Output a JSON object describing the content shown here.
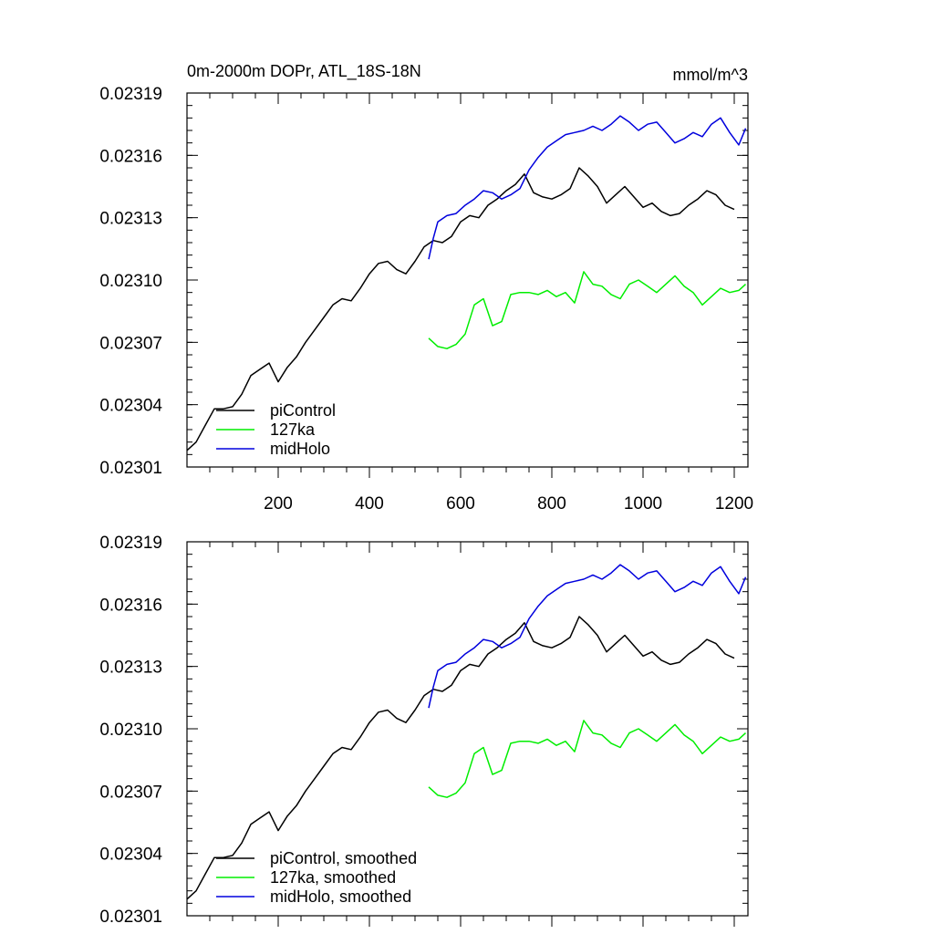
{
  "chart_data": [
    {
      "type": "line",
      "title": "0m-2000m DOPr, ATL_18S-18N",
      "units": "mmol/m^3",
      "xlim": [
        0,
        1230
      ],
      "ylim": [
        0.02301,
        0.02319
      ],
      "yticks": [
        0.02301,
        0.02304,
        0.02307,
        0.0231,
        0.02313,
        0.02316,
        0.02319
      ],
      "yticklabels": [
        "0.02301",
        "0.02304",
        "0.02307",
        "0.02310",
        "0.02313",
        "0.02316",
        "0.02319"
      ],
      "xticks": [
        200,
        400,
        600,
        800,
        1000,
        1200
      ],
      "xticklabels": [
        "200",
        "400",
        "600",
        "800",
        "1000",
        "1200"
      ],
      "series": [
        {
          "name": "piControl",
          "color": "#000000",
          "x": [
            0,
            20,
            40,
            60,
            80,
            100,
            120,
            140,
            160,
            180,
            200,
            220,
            240,
            260,
            280,
            300,
            320,
            340,
            360,
            380,
            400,
            420,
            440,
            460,
            480,
            500,
            520,
            540,
            560,
            580,
            600,
            620,
            640,
            660,
            680,
            700,
            720,
            740,
            760,
            780,
            800,
            820,
            840,
            860,
            880,
            900,
            920,
            940,
            960,
            980,
            1000,
            1020,
            1040,
            1060,
            1080,
            1100,
            1120,
            1140,
            1160,
            1180,
            1200
          ],
          "y": [
            0.023018,
            0.023022,
            0.02303,
            0.023038,
            0.023038,
            0.023039,
            0.023045,
            0.023054,
            0.023057,
            0.02306,
            0.023051,
            0.023058,
            0.023063,
            0.02307,
            0.023076,
            0.023082,
            0.023088,
            0.023091,
            0.02309,
            0.023096,
            0.023103,
            0.023108,
            0.023109,
            0.023105,
            0.023103,
            0.023109,
            0.023116,
            0.023119,
            0.023118,
            0.023121,
            0.023128,
            0.023131,
            0.02313,
            0.023136,
            0.023139,
            0.023143,
            0.023146,
            0.023151,
            0.023142,
            0.02314,
            0.023139,
            0.023141,
            0.023144,
            0.023154,
            0.02315,
            0.023145,
            0.023137,
            0.023141,
            0.023145,
            0.02314,
            0.023135,
            0.023137,
            0.023133,
            0.023131,
            0.023132,
            0.023136,
            0.023139,
            0.023143,
            0.023141,
            0.023136,
            0.023134
          ]
        },
        {
          "name": "127ka",
          "color": "#00ee00",
          "x": [
            530,
            550,
            570,
            590,
            610,
            630,
            650,
            670,
            690,
            710,
            730,
            750,
            770,
            790,
            810,
            830,
            850,
            870,
            890,
            910,
            930,
            950,
            970,
            990,
            1010,
            1030,
            1050,
            1070,
            1090,
            1110,
            1130,
            1150,
            1170,
            1190,
            1210,
            1225
          ],
          "y": [
            0.023072,
            0.023068,
            0.023067,
            0.023069,
            0.023074,
            0.023088,
            0.023091,
            0.023078,
            0.02308,
            0.023093,
            0.023094,
            0.023094,
            0.023093,
            0.023095,
            0.023092,
            0.023094,
            0.023089,
            0.023104,
            0.023098,
            0.023097,
            0.023093,
            0.023091,
            0.023098,
            0.0231,
            0.023097,
            0.023094,
            0.023098,
            0.023102,
            0.023097,
            0.023094,
            0.023088,
            0.023092,
            0.023096,
            0.023094,
            0.023095,
            0.023098
          ]
        },
        {
          "name": "midHolo",
          "color": "#0000dd",
          "x": [
            530,
            540,
            550,
            570,
            590,
            610,
            630,
            650,
            670,
            690,
            710,
            730,
            750,
            770,
            790,
            810,
            830,
            850,
            870,
            890,
            910,
            930,
            950,
            970,
            990,
            1010,
            1030,
            1050,
            1070,
            1090,
            1110,
            1130,
            1150,
            1170,
            1190,
            1210,
            1225
          ],
          "y": [
            0.02311,
            0.02312,
            0.023128,
            0.023131,
            0.023132,
            0.023136,
            0.023139,
            0.023143,
            0.023142,
            0.023139,
            0.023141,
            0.023144,
            0.023153,
            0.023159,
            0.023164,
            0.023167,
            0.02317,
            0.023171,
            0.023172,
            0.023174,
            0.023172,
            0.023175,
            0.023179,
            0.023176,
            0.023172,
            0.023175,
            0.023176,
            0.023171,
            0.023166,
            0.023168,
            0.023171,
            0.023169,
            0.023175,
            0.023178,
            0.023171,
            0.023165,
            0.023173
          ]
        }
      ],
      "legend": [
        "piControl",
        "127ka",
        "midHolo"
      ]
    },
    {
      "type": "line",
      "title": "",
      "xlim": [
        0,
        1230
      ],
      "ylim": [
        0.02301,
        0.02319
      ],
      "yticks": [
        0.02301,
        0.02304,
        0.02307,
        0.0231,
        0.02313,
        0.02316,
        0.02319
      ],
      "yticklabels": [
        "0.02301",
        "0.02304",
        "0.02307",
        "0.02310",
        "0.02313",
        "0.02316",
        "0.02319"
      ],
      "xticks": [
        200,
        400,
        600,
        800,
        1000,
        1200
      ],
      "xticklabels": [],
      "series": [
        {
          "name": "piControl, smoothed",
          "color": "#000000",
          "x": [
            0,
            20,
            40,
            60,
            80,
            100,
            120,
            140,
            160,
            180,
            200,
            220,
            240,
            260,
            280,
            300,
            320,
            340,
            360,
            380,
            400,
            420,
            440,
            460,
            480,
            500,
            520,
            540,
            560,
            580,
            600,
            620,
            640,
            660,
            680,
            700,
            720,
            740,
            760,
            780,
            800,
            820,
            840,
            860,
            880,
            900,
            920,
            940,
            960,
            980,
            1000,
            1020,
            1040,
            1060,
            1080,
            1100,
            1120,
            1140,
            1160,
            1180,
            1200
          ],
          "y": [
            0.023018,
            0.023022,
            0.02303,
            0.023038,
            0.023038,
            0.023039,
            0.023045,
            0.023054,
            0.023057,
            0.02306,
            0.023051,
            0.023058,
            0.023063,
            0.02307,
            0.023076,
            0.023082,
            0.023088,
            0.023091,
            0.02309,
            0.023096,
            0.023103,
            0.023108,
            0.023109,
            0.023105,
            0.023103,
            0.023109,
            0.023116,
            0.023119,
            0.023118,
            0.023121,
            0.023128,
            0.023131,
            0.02313,
            0.023136,
            0.023139,
            0.023143,
            0.023146,
            0.023151,
            0.023142,
            0.02314,
            0.023139,
            0.023141,
            0.023144,
            0.023154,
            0.02315,
            0.023145,
            0.023137,
            0.023141,
            0.023145,
            0.02314,
            0.023135,
            0.023137,
            0.023133,
            0.023131,
            0.023132,
            0.023136,
            0.023139,
            0.023143,
            0.023141,
            0.023136,
            0.023134
          ]
        },
        {
          "name": "127ka, smoothed",
          "color": "#00ee00",
          "x": [
            530,
            550,
            570,
            590,
            610,
            630,
            650,
            670,
            690,
            710,
            730,
            750,
            770,
            790,
            810,
            830,
            850,
            870,
            890,
            910,
            930,
            950,
            970,
            990,
            1010,
            1030,
            1050,
            1070,
            1090,
            1110,
            1130,
            1150,
            1170,
            1190,
            1210,
            1225
          ],
          "y": [
            0.023072,
            0.023068,
            0.023067,
            0.023069,
            0.023074,
            0.023088,
            0.023091,
            0.023078,
            0.02308,
            0.023093,
            0.023094,
            0.023094,
            0.023093,
            0.023095,
            0.023092,
            0.023094,
            0.023089,
            0.023104,
            0.023098,
            0.023097,
            0.023093,
            0.023091,
            0.023098,
            0.0231,
            0.023097,
            0.023094,
            0.023098,
            0.023102,
            0.023097,
            0.023094,
            0.023088,
            0.023092,
            0.023096,
            0.023094,
            0.023095,
            0.023098
          ]
        },
        {
          "name": "midHolo, smoothed",
          "color": "#0000dd",
          "x": [
            530,
            540,
            550,
            570,
            590,
            610,
            630,
            650,
            670,
            690,
            710,
            730,
            750,
            770,
            790,
            810,
            830,
            850,
            870,
            890,
            910,
            930,
            950,
            970,
            990,
            1010,
            1030,
            1050,
            1070,
            1090,
            1110,
            1130,
            1150,
            1170,
            1190,
            1210,
            1225
          ],
          "y": [
            0.02311,
            0.02312,
            0.023128,
            0.023131,
            0.023132,
            0.023136,
            0.023139,
            0.023143,
            0.023142,
            0.023139,
            0.023141,
            0.023144,
            0.023153,
            0.023159,
            0.023164,
            0.023167,
            0.02317,
            0.023171,
            0.023172,
            0.023174,
            0.023172,
            0.023175,
            0.023179,
            0.023176,
            0.023172,
            0.023175,
            0.023176,
            0.023171,
            0.023166,
            0.023168,
            0.023171,
            0.023169,
            0.023175,
            0.023178,
            0.023171,
            0.023165,
            0.023173
          ]
        }
      ],
      "legend": [
        "piControl, smoothed",
        "127ka, smoothed",
        "midHolo, smoothed"
      ]
    }
  ]
}
